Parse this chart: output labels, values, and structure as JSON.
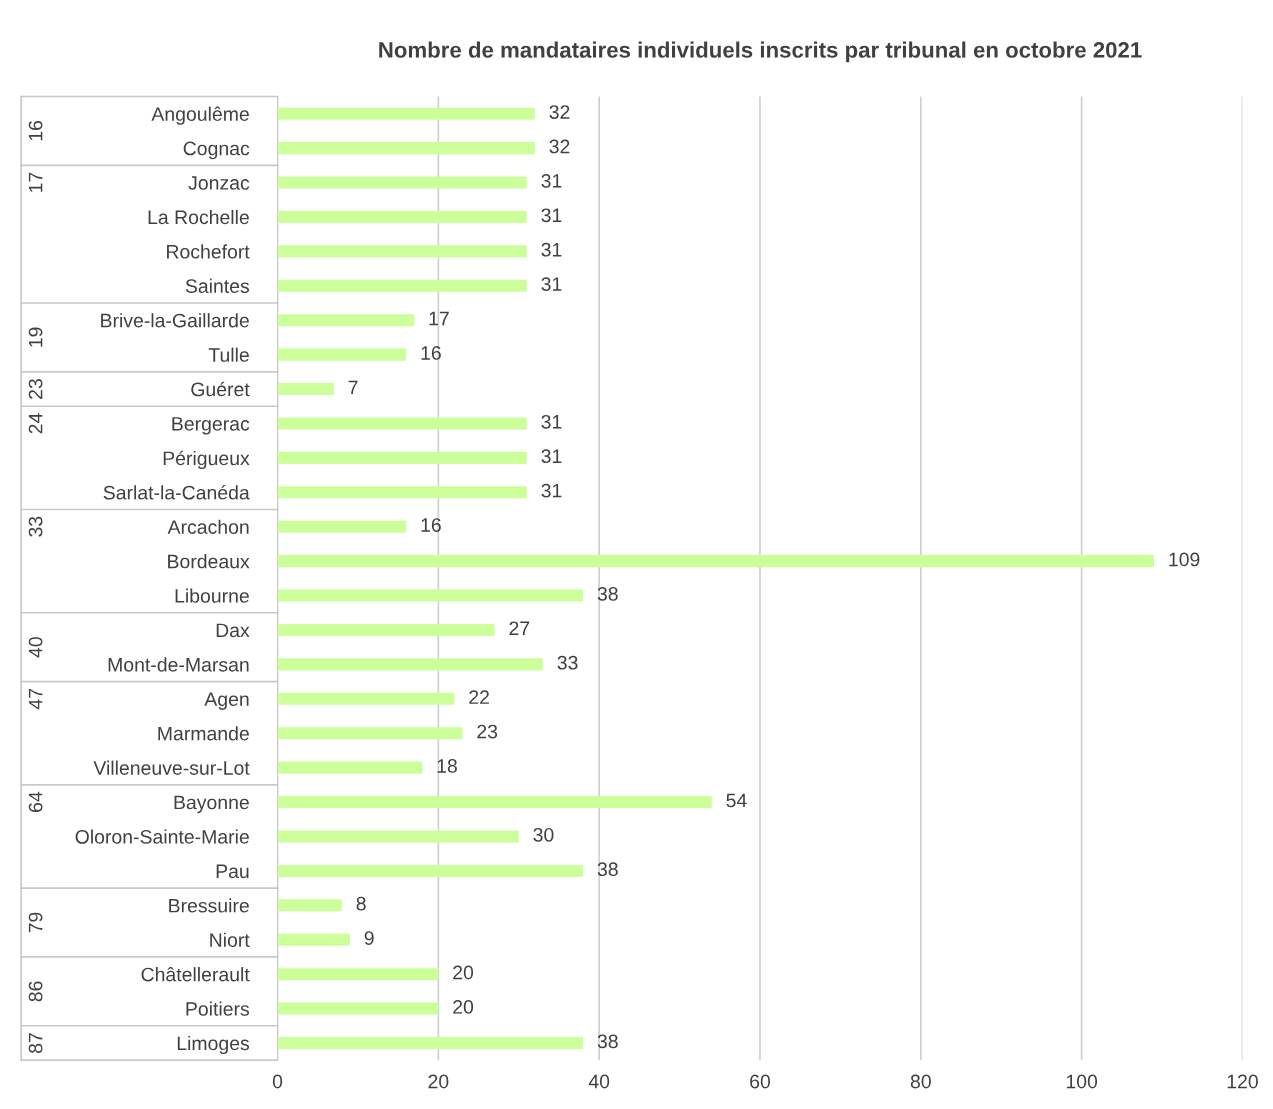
{
  "chart_data": {
    "type": "bar",
    "orientation": "horizontal",
    "title": "Nombre de mandataires individuels inscrits par tribunal en octobre 2021",
    "categories": [
      "Angoulême",
      "Cognac",
      "Jonzac",
      "La Rochelle",
      "Rochefort",
      "Saintes",
      "Brive-la-Gaillarde",
      "Tulle",
      "Guéret",
      "Bergerac",
      "Périgueux",
      "Sarlat-la-Canéda",
      "Arcachon",
      "Bordeaux",
      "Libourne",
      "Dax",
      "Mont-de-Marsan",
      "Agen",
      "Marmande",
      "Villeneuve-sur-Lot",
      "Bayonne",
      "Oloron-Sainte-Marie",
      "Pau",
      "Bressuire",
      "Niort",
      "Châtellerault",
      "Poitiers",
      "Limoges"
    ],
    "values": [
      32,
      32,
      31,
      31,
      31,
      31,
      17,
      16,
      7,
      31,
      31,
      31,
      16,
      109,
      38,
      27,
      33,
      22,
      23,
      18,
      54,
      30,
      38,
      8,
      9,
      20,
      20,
      38
    ],
    "color": "#ccff99",
    "xlim": [
      0,
      120
    ],
    "xticks": [
      0,
      20,
      40,
      60,
      80,
      100,
      120
    ],
    "grid": "x",
    "data_labels": true,
    "y2_categories": [
      "16",
      null,
      "17",
      null,
      null,
      null,
      "19",
      null,
      "23",
      "24",
      null,
      null,
      "33",
      null,
      null,
      "40",
      null,
      "47",
      null,
      null,
      "64",
      null,
      null,
      "79",
      null,
      "86",
      null,
      "87"
    ]
  }
}
